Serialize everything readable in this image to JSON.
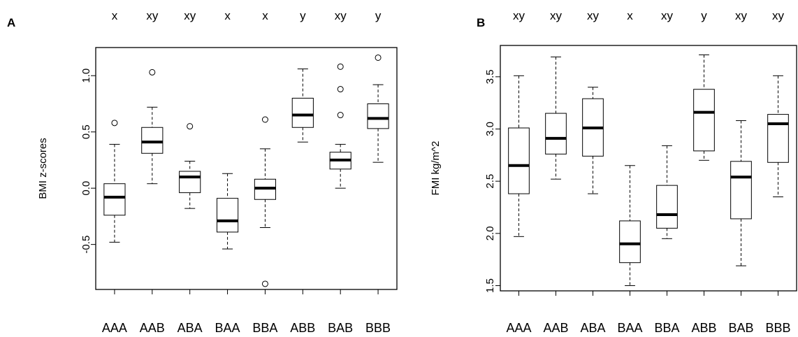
{
  "chart_data": [
    {
      "type": "boxplot",
      "panel_label": "A",
      "ylabel": "BMI z-scores",
      "ylim": [
        -0.9,
        1.25
      ],
      "yticks": [
        -0.5,
        0.0,
        0.5,
        1.0
      ],
      "ytick_labels": [
        "-0.5",
        "0.0",
        "0.5",
        "1.0"
      ],
      "categories": [
        "AAA",
        "AAB",
        "ABA",
        "BAA",
        "BBA",
        "ABB",
        "BAB",
        "BBB"
      ],
      "letters": [
        "x",
        "xy",
        "xy",
        "x",
        "x",
        "y",
        "xy",
        "y"
      ],
      "boxes": [
        {
          "min": -0.48,
          "q1": -0.24,
          "median": -0.08,
          "q3": 0.04,
          "max": 0.39,
          "outliers": [
            0.58
          ]
        },
        {
          "min": 0.04,
          "q1": 0.31,
          "median": 0.41,
          "q3": 0.54,
          "max": 0.72,
          "outliers": [
            1.03
          ]
        },
        {
          "min": -0.18,
          "q1": -0.04,
          "median": 0.1,
          "q3": 0.15,
          "max": 0.24,
          "outliers": [
            0.55
          ]
        },
        {
          "min": -0.54,
          "q1": -0.39,
          "median": -0.29,
          "q3": -0.09,
          "max": 0.13,
          "outliers": []
        },
        {
          "min": -0.35,
          "q1": -0.1,
          "median": 0.0,
          "q3": 0.08,
          "max": 0.35,
          "outliers": [
            -0.85,
            0.61
          ]
        },
        {
          "min": 0.41,
          "q1": 0.54,
          "median": 0.65,
          "q3": 0.8,
          "max": 1.06,
          "outliers": []
        },
        {
          "min": 0.0,
          "q1": 0.17,
          "median": 0.25,
          "q3": 0.32,
          "max": 0.39,
          "outliers": [
            0.65,
            0.88,
            1.08
          ]
        },
        {
          "min": 0.23,
          "q1": 0.53,
          "median": 0.62,
          "q3": 0.75,
          "max": 0.92,
          "outliers": [
            1.16
          ]
        }
      ]
    },
    {
      "type": "boxplot",
      "panel_label": "B",
      "ylabel": "FMI kg/m^2",
      "ylim": [
        1.45,
        3.8
      ],
      "yticks": [
        1.5,
        2.0,
        2.5,
        3.0,
        3.5
      ],
      "ytick_labels": [
        "1.5",
        "2.0",
        "2.5",
        "3.0",
        "3.5"
      ],
      "categories": [
        "AAA",
        "AAB",
        "ABA",
        "BAA",
        "BBA",
        "ABB",
        "BAB",
        "BBB"
      ],
      "letters": [
        "xy",
        "xy",
        "xy",
        "x",
        "xy",
        "y",
        "xy",
        "xy"
      ],
      "boxes": [
        {
          "min": 1.97,
          "q1": 2.38,
          "median": 2.65,
          "q3": 3.01,
          "max": 3.51,
          "outliers": []
        },
        {
          "min": 2.52,
          "q1": 2.76,
          "median": 2.91,
          "q3": 3.15,
          "max": 3.69,
          "outliers": []
        },
        {
          "min": 2.38,
          "q1": 2.74,
          "median": 3.01,
          "q3": 3.29,
          "max": 3.4,
          "outliers": []
        },
        {
          "min": 1.5,
          "q1": 1.72,
          "median": 1.9,
          "q3": 2.12,
          "max": 2.65,
          "outliers": []
        },
        {
          "min": 1.95,
          "q1": 2.05,
          "median": 2.18,
          "q3": 2.46,
          "max": 2.84,
          "outliers": []
        },
        {
          "min": 2.7,
          "q1": 2.79,
          "median": 3.16,
          "q3": 3.38,
          "max": 3.71,
          "outliers": []
        },
        {
          "min": 1.69,
          "q1": 2.14,
          "median": 2.54,
          "q3": 2.69,
          "max": 3.08,
          "outliers": []
        },
        {
          "min": 2.35,
          "q1": 2.68,
          "median": 3.05,
          "q3": 3.14,
          "max": 3.51,
          "outliers": []
        }
      ]
    }
  ]
}
